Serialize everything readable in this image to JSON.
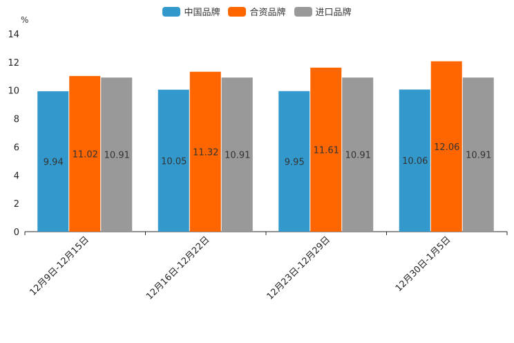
{
  "chart_data": {
    "type": "bar",
    "unit": "%",
    "categories": [
      "12月9日-12月15日",
      "12月16日-12月22日",
      "12月23日-12月29日",
      "12月30日-1月5日"
    ],
    "series": [
      {
        "name": "中国品牌",
        "color": "#3399CC",
        "values": [
          9.94,
          10.05,
          9.95,
          10.06
        ],
        "labels": [
          "9.94",
          "10.05",
          "9.95",
          "10.06"
        ]
      },
      {
        "name": "合资品牌",
        "color": "#FF6600",
        "values": [
          11.02,
          11.32,
          11.61,
          12.06
        ],
        "labels": [
          "11.02",
          "11.32",
          "11.61",
          "12.06"
        ]
      },
      {
        "name": "进口品牌",
        "color": "#999999",
        "values": [
          10.91,
          10.91,
          10.91,
          10.91
        ],
        "labels": [
          "10.91",
          "10.91",
          "10.91",
          "10.91"
        ]
      }
    ],
    "ylim": [
      0,
      14
    ],
    "yticks": [
      "0",
      "2",
      "4",
      "6",
      "8",
      "10",
      "12",
      "14"
    ],
    "legend_position": "top-center"
  }
}
